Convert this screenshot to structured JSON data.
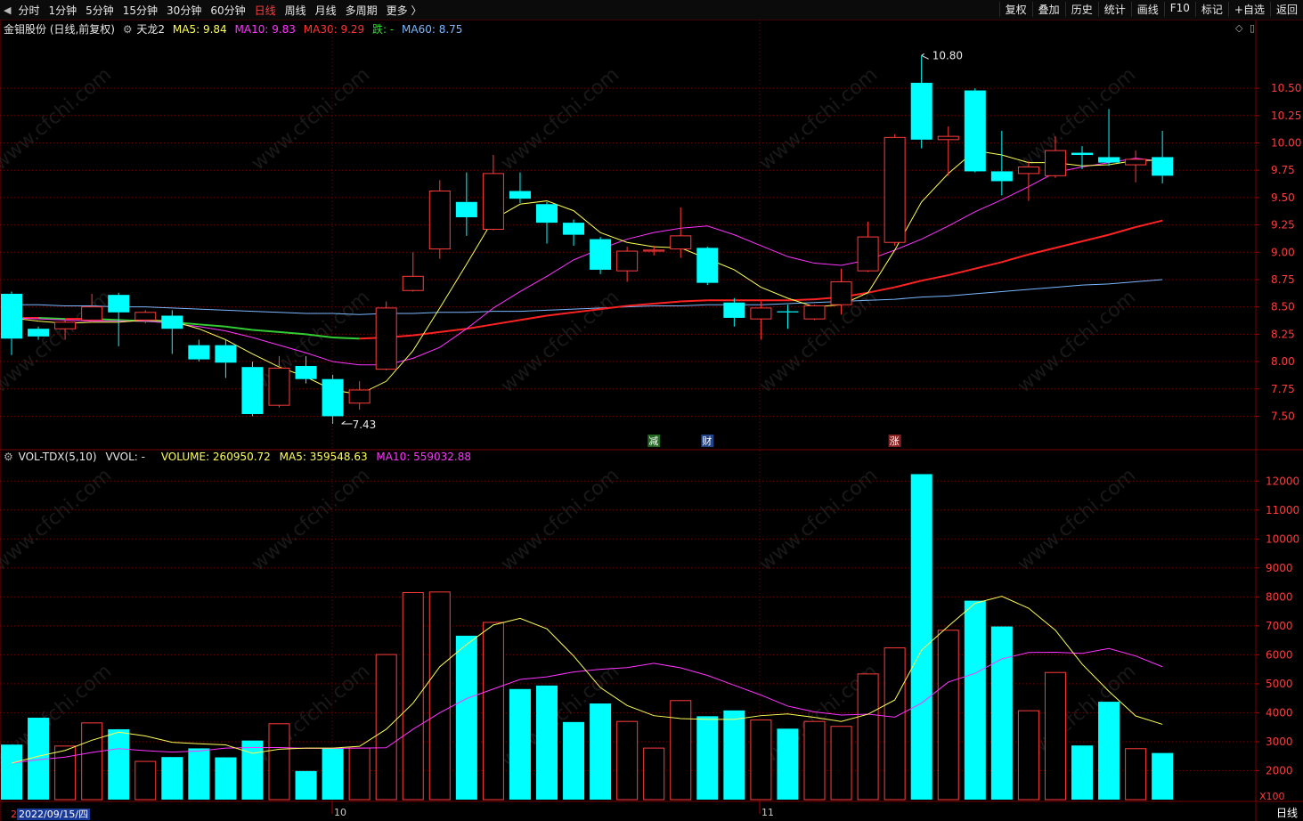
{
  "nav": {
    "arrow": "◀",
    "items": [
      "分时",
      "1分钟",
      "5分钟",
      "15分钟",
      "30分钟",
      "60分钟",
      "日线",
      "周线",
      "月线",
      "多周期",
      "更多 〉"
    ],
    "active_index": 6
  },
  "toolbar": [
    "复权",
    "叠加",
    "历史",
    "统计",
    "画线",
    "F10",
    "标记",
    "+自选",
    "返回"
  ],
  "stock_title": "金钼股份 (日线,前复权)",
  "indicator_name": "天龙2",
  "price_ma": {
    "ma5": "MA5: 9.84",
    "ma10": "MA10: 9.83",
    "ma30": "MA30: 9.29",
    "status": "跌: -",
    "ma60": "MA60: 8.75"
  },
  "vol_header": {
    "name": "VOL-TDX(5,10)",
    "vvol": "VVOL: -",
    "volume": "VOLUME: 260950.72",
    "ma5": "MA5: 359548.63",
    "ma10": "MA10: 559032.88"
  },
  "colors": {
    "up": "#ff3c3c",
    "down": "#00ffff",
    "ma5": "#ffff55",
    "ma10": "#ff33ff",
    "ma30_up": "#ff2222",
    "ma30_down": "#33cc33",
    "ma60": "#7ab8ff",
    "grid": "#7a0000"
  },
  "price_axis": [
    "10.50",
    "10.25",
    "10.00",
    "9.75",
    "9.50",
    "9.25",
    "9.00",
    "8.75",
    "8.50",
    "8.25",
    "8.00",
    "7.75",
    "7.50"
  ],
  "volume_axis": [
    "12000",
    "11000",
    "10000",
    "9000",
    "8000",
    "7000",
    "6000",
    "5000",
    "4000",
    "3000",
    "2000"
  ],
  "volume_unit": "X100",
  "annotations": {
    "high": "10.80",
    "low": "7.43"
  },
  "event_markers": [
    "减",
    "财",
    "涨"
  ],
  "month_labels": [
    "10",
    "11"
  ],
  "bottom_date": "2022/09/15/四",
  "bottom_tab": "日线",
  "watermark": "www.cfchi.com",
  "chart_data": {
    "type": "candlestick",
    "candles": [
      {
        "o": 8.62,
        "c": 8.21,
        "h": 8.64,
        "l": 8.06
      },
      {
        "o": 8.3,
        "c": 8.23,
        "h": 8.32,
        "l": 8.2
      },
      {
        "o": 8.3,
        "c": 8.36,
        "h": 8.38,
        "l": 8.2
      },
      {
        "o": 8.38,
        "c": 8.5,
        "h": 8.62,
        "l": 8.36
      },
      {
        "o": 8.61,
        "c": 8.45,
        "h": 8.63,
        "l": 8.14
      },
      {
        "o": 8.38,
        "c": 8.45,
        "h": 8.47,
        "l": 8.35
      },
      {
        "o": 8.42,
        "c": 8.3,
        "h": 8.47,
        "l": 8.07
      },
      {
        "o": 8.15,
        "c": 8.02,
        "h": 8.2,
        "l": 8.0
      },
      {
        "o": 8.15,
        "c": 7.99,
        "h": 8.2,
        "l": 7.85
      },
      {
        "o": 7.95,
        "c": 7.52,
        "h": 8.0,
        "l": 7.5
      },
      {
        "o": 7.6,
        "c": 7.94,
        "h": 8.05,
        "l": 7.58
      },
      {
        "o": 7.96,
        "c": 7.84,
        "h": 8.05,
        "l": 7.8
      },
      {
        "o": 7.84,
        "c": 7.5,
        "h": 7.88,
        "l": 7.43
      },
      {
        "o": 7.62,
        "c": 7.74,
        "h": 7.82,
        "l": 7.56
      },
      {
        "o": 7.93,
        "c": 8.49,
        "h": 8.55,
        "l": 7.92
      },
      {
        "o": 8.65,
        "c": 8.78,
        "h": 9.0,
        "l": 8.64
      },
      {
        "o": 9.03,
        "c": 9.56,
        "h": 9.66,
        "l": 8.94
      },
      {
        "o": 9.46,
        "c": 9.32,
        "h": 9.73,
        "l": 9.15
      },
      {
        "o": 9.21,
        "c": 9.72,
        "h": 9.89,
        "l": 9.2
      },
      {
        "o": 9.56,
        "c": 9.49,
        "h": 9.73,
        "l": 9.45
      },
      {
        "o": 9.44,
        "c": 9.27,
        "h": 9.46,
        "l": 9.08
      },
      {
        "o": 9.27,
        "c": 9.16,
        "h": 9.3,
        "l": 9.06
      },
      {
        "o": 9.12,
        "c": 8.84,
        "h": 9.14,
        "l": 8.8
      },
      {
        "o": 8.83,
        "c": 9.01,
        "h": 9.05,
        "l": 8.73
      },
      {
        "o": 9.01,
        "c": 9.02,
        "h": 9.06,
        "l": 8.97
      },
      {
        "o": 9.03,
        "c": 9.15,
        "h": 9.41,
        "l": 8.95
      },
      {
        "o": 9.04,
        "c": 8.72,
        "h": 9.05,
        "l": 8.7
      },
      {
        "o": 8.54,
        "c": 8.4,
        "h": 8.58,
        "l": 8.32
      },
      {
        "o": 8.39,
        "c": 8.49,
        "h": 8.55,
        "l": 8.2
      },
      {
        "o": 8.46,
        "c": 8.45,
        "h": 8.52,
        "l": 8.3
      },
      {
        "o": 8.39,
        "c": 8.51,
        "h": 8.52,
        "l": 8.38
      },
      {
        "o": 8.52,
        "c": 8.73,
        "h": 8.85,
        "l": 8.43
      },
      {
        "o": 8.83,
        "c": 9.14,
        "h": 9.28,
        "l": 8.82
      },
      {
        "o": 9.09,
        "c": 10.05,
        "h": 10.08,
        "l": 9.06
      },
      {
        "o": 10.55,
        "c": 10.03,
        "h": 10.8,
        "l": 9.95
      },
      {
        "o": 10.03,
        "c": 10.06,
        "h": 10.15,
        "l": 9.7
      },
      {
        "o": 10.48,
        "c": 9.74,
        "h": 10.5,
        "l": 9.73
      },
      {
        "o": 9.74,
        "c": 9.65,
        "h": 10.11,
        "l": 9.52
      },
      {
        "o": 9.72,
        "c": 9.78,
        "h": 9.83,
        "l": 9.47
      },
      {
        "o": 9.7,
        "c": 9.93,
        "h": 10.06,
        "l": 9.68
      },
      {
        "o": 9.91,
        "c": 9.89,
        "h": 9.97,
        "l": 9.76
      },
      {
        "o": 9.87,
        "c": 9.82,
        "h": 10.31,
        "l": 9.79
      },
      {
        "o": 9.8,
        "c": 9.85,
        "h": 9.93,
        "l": 9.64
      },
      {
        "o": 9.87,
        "c": 9.7,
        "h": 10.11,
        "l": 9.63
      }
    ],
    "ma5": [
      8.4,
      8.37,
      8.35,
      8.36,
      8.36,
      8.38,
      8.37,
      8.3,
      8.2,
      8.07,
      7.95,
      7.86,
      7.74,
      7.7,
      7.82,
      8.1,
      8.49,
      8.89,
      9.3,
      9.44,
      9.47,
      9.38,
      9.18,
      9.09,
      9.05,
      9.04,
      8.94,
      8.84,
      8.68,
      8.58,
      8.5,
      8.52,
      8.63,
      9.02,
      9.46,
      9.72,
      9.93,
      9.89,
      9.82,
      9.82,
      9.79,
      9.8,
      9.84,
      9.84
    ],
    "ma10": [
      8.4,
      8.39,
      8.38,
      8.37,
      8.37,
      8.37,
      8.35,
      8.32,
      8.28,
      8.22,
      8.15,
      8.08,
      8.0,
      7.97,
      7.97,
      8.03,
      8.13,
      8.3,
      8.49,
      8.64,
      8.78,
      8.93,
      9.03,
      9.12,
      9.18,
      9.22,
      9.24,
      9.16,
      9.06,
      8.96,
      8.9,
      8.88,
      8.93,
      9.02,
      9.12,
      9.24,
      9.37,
      9.48,
      9.6,
      9.73,
      9.78,
      9.82,
      9.86,
      9.83
    ],
    "ma30": [
      8.4,
      8.4,
      8.39,
      8.39,
      8.38,
      8.37,
      8.36,
      8.34,
      8.32,
      8.29,
      8.27,
      8.25,
      8.22,
      8.21,
      8.22,
      8.24,
      8.27,
      8.3,
      8.34,
      8.38,
      8.42,
      8.45,
      8.48,
      8.51,
      8.53,
      8.55,
      8.56,
      8.56,
      8.56,
      8.56,
      8.57,
      8.59,
      8.63,
      8.68,
      8.74,
      8.79,
      8.85,
      8.91,
      8.98,
      9.04,
      9.1,
      9.16,
      9.23,
      9.29
    ],
    "ma60": [
      8.52,
      8.52,
      8.51,
      8.51,
      8.5,
      8.5,
      8.49,
      8.48,
      8.47,
      8.46,
      8.45,
      8.44,
      8.44,
      8.43,
      8.44,
      8.44,
      8.45,
      8.45,
      8.46,
      8.46,
      8.47,
      8.48,
      8.49,
      8.5,
      8.51,
      8.51,
      8.52,
      8.52,
      8.52,
      8.53,
      8.54,
      8.55,
      8.56,
      8.57,
      8.59,
      8.6,
      8.62,
      8.64,
      8.66,
      8.68,
      8.7,
      8.71,
      8.73,
      8.75
    ],
    "volume": [
      2900,
      3830,
      2850,
      3650,
      3430,
      2320,
      2470,
      2770,
      2460,
      3040,
      3620,
      1990,
      2770,
      2780,
      6010,
      8150,
      8170,
      6660,
      7120,
      4820,
      4940,
      3680,
      4320,
      3700,
      2780,
      4420,
      3880,
      4080,
      3750,
      3450,
      3700,
      3530,
      5340,
      6240,
      12240,
      6850,
      7870,
      6980,
      4070,
      5390,
      2870,
      4380,
      2760,
      2610
    ],
    "vol_ma5": [
      2260,
      2500,
      2700,
      3050,
      3330,
      3200,
      2980,
      2930,
      2890,
      2600,
      2740,
      2780,
      2780,
      2840,
      3430,
      4330,
      5590,
      6360,
      7030,
      7260,
      6900,
      5960,
      4870,
      4250,
      3900,
      3800,
      3770,
      3770,
      3900,
      3960,
      3840,
      3700,
      3950,
      4440,
      6160,
      6990,
      7780,
      8020,
      7610,
      6850,
      5680,
      4740,
      3890,
      3600
    ],
    "vol_ma10": [
      2260,
      2380,
      2470,
      2630,
      2760,
      2690,
      2640,
      2680,
      2780,
      2800,
      2800,
      2770,
      2770,
      2780,
      2790,
      3430,
      4000,
      4490,
      4820,
      5150,
      5240,
      5410,
      5500,
      5560,
      5710,
      5550,
      5290,
      4950,
      4610,
      4230,
      4030,
      3920,
      3950,
      3850,
      4330,
      5060,
      5360,
      5860,
      6080,
      6090,
      6050,
      6220,
      5960,
      5590
    ],
    "ylim": [
      7.3,
      10.9
    ],
    "vol_ylim": [
      1000,
      12500
    ]
  }
}
